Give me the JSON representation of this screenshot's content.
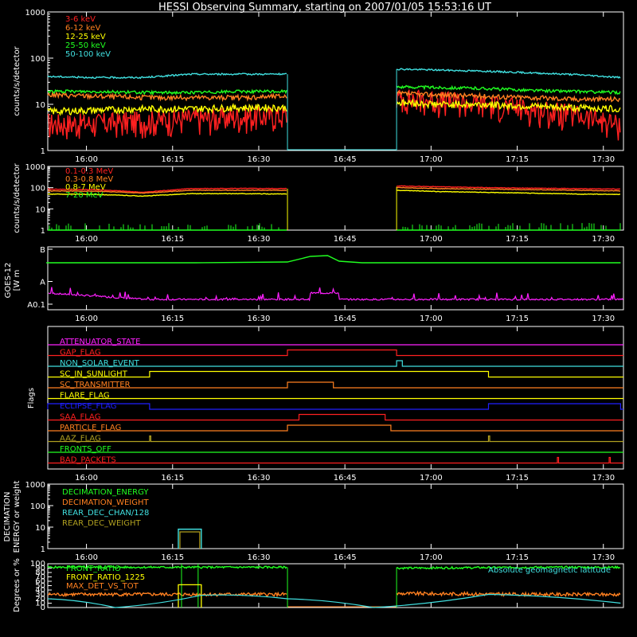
{
  "title": "HESSI Observing Summary, starting on 2007/01/05 15:53:16 UT",
  "time_ticks": [
    "16:00",
    "16:15",
    "16:30",
    "16:45",
    "17:00",
    "17:15",
    "17:30"
  ],
  "colors": {
    "red": "#ff2020",
    "orange": "#ff8020",
    "yellow": "#ffff00",
    "green": "#20ff20",
    "cyan": "#40e0e0",
    "magenta": "#ff20ff",
    "blue": "#2020ff",
    "olive": "#b0a020",
    "white": "#ffffff"
  },
  "chart_data": [
    {
      "id": "low-energy-rates",
      "type": "line",
      "ylabel": "counts/s/detector",
      "yscale": "log",
      "ylim": [
        1,
        1000
      ],
      "yticks": [
        "1",
        "10",
        "100",
        "1000"
      ],
      "x": [
        "15:53:16",
        "16:35",
        "16:54",
        "17:33"
      ],
      "series": [
        {
          "name": "3-6 keV",
          "color": "red",
          "segments": [
            {
              "start": "15:53",
              "end": "16:35",
              "values": [
                4,
                4,
                4.5,
                5,
                5.5,
                6
              ]
            },
            {
              "start": "16:54",
              "end": "17:33",
              "values": [
                14,
                12,
                10,
                8,
                6,
                3.5
              ]
            }
          ]
        },
        {
          "name": "6-12 keV",
          "color": "orange",
          "segments": [
            {
              "start": "15:53",
              "end": "16:35",
              "values": [
                16,
                15,
                14,
                14,
                14,
                15
              ]
            },
            {
              "start": "16:54",
              "end": "17:33",
              "values": [
                17,
                16,
                15,
                14,
                13,
                13
              ]
            }
          ]
        },
        {
          "name": "12-25 keV",
          "color": "yellow",
          "segments": [
            {
              "start": "15:53",
              "end": "16:35",
              "values": [
                7,
                7.5,
                8,
                8,
                8.5,
                8.5
              ]
            },
            {
              "start": "16:54",
              "end": "17:33",
              "values": [
                11,
                10,
                10,
                9,
                8.5,
                8
              ]
            }
          ]
        },
        {
          "name": "25-50 keV",
          "color": "green",
          "segments": [
            {
              "start": "15:53",
              "end": "16:35",
              "values": [
                19,
                19,
                18,
                18,
                19,
                19
              ]
            },
            {
              "start": "16:54",
              "end": "17:33",
              "values": [
                24,
                23,
                22,
                20,
                19,
                18
              ]
            }
          ]
        },
        {
          "name": "50-100 keV",
          "color": "cyan",
          "segments": [
            {
              "start": "15:53",
              "end": "16:35",
              "values": [
                40,
                38,
                38,
                45,
                45,
                45
              ]
            },
            {
              "start": "16:54",
              "end": "17:33",
              "values": [
                58,
                55,
                52,
                48,
                44,
                38
              ]
            }
          ]
        }
      ]
    },
    {
      "id": "high-energy-rates",
      "type": "line",
      "ylabel": "counts/s/detector",
      "yscale": "log",
      "ylim": [
        1,
        1000
      ],
      "yticks": [
        "1",
        "10",
        "100",
        "1000"
      ],
      "series": [
        {
          "name": "0.1-0.3 MeV",
          "color": "red",
          "segments": [
            {
              "start": "15:53",
              "end": "16:35",
              "values": [
                85,
                80,
                60,
                90,
                92,
                90
              ]
            },
            {
              "start": "16:54",
              "end": "17:33",
              "values": [
                120,
                110,
                100,
                95,
                90,
                85
              ]
            }
          ]
        },
        {
          "name": "0.3-0.8 MeV",
          "color": "orange",
          "segments": [
            {
              "start": "15:53",
              "end": "16:35",
              "values": [
                70,
                68,
                55,
                75,
                75,
                75
              ]
            },
            {
              "start": "16:54",
              "end": "17:33",
              "values": [
                100,
                90,
                85,
                80,
                75,
                70
              ]
            }
          ]
        },
        {
          "name": "0.8-7 MeV",
          "color": "yellow",
          "segments": [
            {
              "start": "15:53",
              "end": "16:35",
              "values": [
                50,
                48,
                40,
                52,
                52,
                50
              ]
            },
            {
              "start": "16:54",
              "end": "17:33",
              "values": [
                75,
                65,
                60,
                55,
                50,
                48
              ]
            }
          ]
        },
        {
          "name": "7-20 MeV",
          "color": "green",
          "segments": [
            {
              "start": "15:53",
              "end": "16:35",
              "values": [
                1,
                1,
                1,
                1,
                1,
                1
              ]
            },
            {
              "start": "16:54",
              "end": "17:33",
              "values": [
                1,
                1,
                1,
                1,
                1,
                1
              ]
            }
          ]
        }
      ]
    },
    {
      "id": "goes-flux",
      "type": "line",
      "ylabel": "GOES-12 [W m^-2]",
      "yticks": [
        "A0.1",
        "A",
        "B"
      ],
      "series": [
        {
          "name": "",
          "color": "green",
          "points": [
            [
              "15:53",
              0
            ],
            [
              "16:19",
              0
            ],
            [
              "16:35",
              0.05
            ],
            [
              "16:39",
              0.4
            ],
            [
              "16:42",
              0.45
            ],
            [
              "16:44",
              0.1
            ],
            [
              "16:48",
              0
            ],
            [
              "17:33",
              0
            ]
          ]
        },
        {
          "name": "",
          "color": "magenta",
          "points": [
            [
              "15:53",
              0.55
            ],
            [
              "16:00",
              0.6
            ],
            [
              "16:05",
              0.75
            ],
            [
              "16:10",
              0.85
            ],
            [
              "16:39",
              0.9
            ],
            [
              "16:40",
              0.55
            ],
            [
              "16:42",
              0.5
            ],
            [
              "16:44",
              0.85
            ],
            [
              "17:33",
              0.9
            ]
          ]
        }
      ]
    },
    {
      "id": "flags",
      "type": "table",
      "ylabel": "Flags",
      "flags": [
        {
          "name": "ATTENUATOR_STATE",
          "color": "magenta",
          "high": []
        },
        {
          "name": "GAP_FLAG",
          "color": "red",
          "high": [
            [
              "16:35",
              "16:54"
            ]
          ]
        },
        {
          "name": "NON_SOLAR_EVENT",
          "color": "cyan",
          "high": [
            [
              "16:54",
              "16:55"
            ]
          ]
        },
        {
          "name": "SC_IN_SUNLIGHT",
          "color": "yellow",
          "high": [
            [
              "16:11",
              "17:10"
            ]
          ]
        },
        {
          "name": "SC_TRANSMITTER",
          "color": "orange",
          "high": [
            [
              "16:35",
              "16:43"
            ]
          ]
        },
        {
          "name": "FLARE_FLAG",
          "color": "yellow",
          "high": []
        },
        {
          "name": "ECLIPSE_FLAG",
          "color": "blue",
          "high": [
            [
              "15:53",
              "16:11"
            ],
            [
              "17:10",
              "17:33"
            ]
          ]
        },
        {
          "name": "SAA_FLAG",
          "color": "red",
          "high": [
            [
              "16:37",
              "16:52"
            ]
          ]
        },
        {
          "name": "PARTICLE_FLAG",
          "color": "orange",
          "high": [
            [
              "16:35",
              "16:53"
            ]
          ]
        },
        {
          "name": "AAZ_FLAG",
          "color": "olive",
          "high": [
            [
              "16:11",
              "16:11"
            ],
            [
              "17:10",
              "17:10"
            ]
          ]
        },
        {
          "name": "FRONTS_OFF",
          "color": "green",
          "high": []
        },
        {
          "name": "BAD_PACKETS",
          "color": "red",
          "high": [
            [
              "17:22",
              "17:22"
            ],
            [
              "17:31",
              "17:31"
            ]
          ]
        }
      ]
    },
    {
      "id": "decimation",
      "type": "line",
      "ylabel": "DECIMATION ENERGY or weight",
      "yscale": "log",
      "ylim": [
        1,
        1000
      ],
      "yticks": [
        "1",
        "10",
        "100",
        "1000"
      ],
      "series": [
        {
          "name": "DECIMATION_ENERGY",
          "color": "green",
          "points": []
        },
        {
          "name": "DECIMATION_WEIGHT",
          "color": "orange",
          "points": []
        },
        {
          "name": "REAR_DEC_CHAN/128",
          "color": "cyan",
          "points": [
            [
              "16:16",
              8
            ],
            [
              "16:20",
              8
            ]
          ]
        },
        {
          "name": "REAR_DEC_WEIGHT",
          "color": "olive",
          "points": [
            [
              "16:16",
              6
            ],
            [
              "16:20",
              6
            ]
          ]
        }
      ]
    },
    {
      "id": "ratios",
      "type": "line",
      "ylabel": "Degrees or %",
      "ylim": [
        0,
        100
      ],
      "yticks": [
        "0",
        "10",
        "20",
        "30",
        "40",
        "50",
        "60",
        "70",
        "80",
        "90",
        "100"
      ],
      "annotation": "Absolute geomagnetic latitude",
      "series": [
        {
          "name": "FRONT_RATIO",
          "color": "green",
          "points": [
            [
              "15:53",
              92
            ],
            [
              "16:35",
              92
            ],
            [
              "16:54",
              90
            ],
            [
              "17:33",
              92
            ]
          ]
        },
        {
          "name": "FRONT_RATIO_1225",
          "color": "yellow",
          "points": [
            [
              "16:16",
              52
            ],
            [
              "16:20",
              52
            ]
          ]
        },
        {
          "name": "MAX_DET_VS_TOT",
          "color": "orange",
          "points": [
            [
              "15:53",
              30
            ],
            [
              "16:35",
              30
            ],
            [
              "16:54",
              32
            ],
            [
              "17:33",
              30
            ]
          ]
        },
        {
          "name": "Absolute geomagnetic latitude",
          "color": "cyan",
          "points": [
            [
              "15:53",
              20
            ],
            [
              "16:05",
              0
            ],
            [
              "16:20",
              28
            ],
            [
              "16:35",
              20
            ],
            [
              "16:50",
              0
            ],
            [
              "17:10",
              30
            ],
            [
              "17:33",
              10
            ]
          ]
        }
      ]
    }
  ]
}
